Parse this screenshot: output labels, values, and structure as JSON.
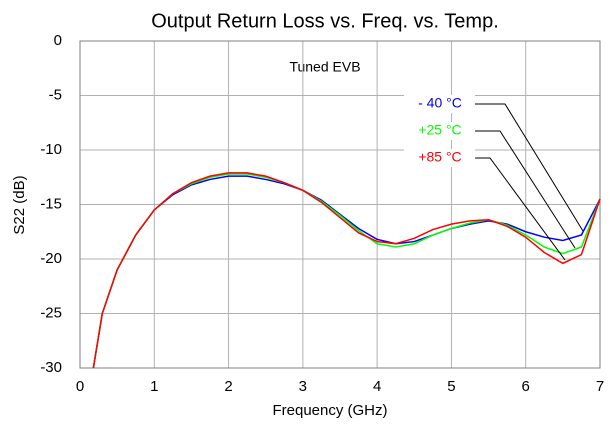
{
  "chart_data": {
    "type": "line",
    "title": "Output Return Loss vs. Freq. vs. Temp.",
    "annotation": "Tuned EVB",
    "xlabel": "Frequency (GHz)",
    "ylabel": "S22 (dB)",
    "x": [
      0.18,
      0.3,
      0.5,
      0.75,
      1.0,
      1.25,
      1.5,
      1.75,
      2.0,
      2.25,
      2.5,
      2.75,
      3.0,
      3.25,
      3.5,
      3.75,
      4.0,
      4.25,
      4.5,
      4.75,
      5.0,
      5.25,
      5.5,
      5.75,
      6.0,
      6.25,
      6.5,
      6.75,
      7.0
    ],
    "series": [
      {
        "name": "- 40 °C",
        "color": "#0000ff",
        "values": [
          -30,
          -25,
          -21,
          -17.8,
          -15.5,
          -14.1,
          -13.2,
          -12.7,
          -12.4,
          -12.4,
          -12.7,
          -13.1,
          -13.7,
          -14.6,
          -15.9,
          -17.2,
          -18.2,
          -18.6,
          -18.4,
          -17.8,
          -17.2,
          -16.8,
          -16.5,
          -16.8,
          -17.5,
          -18.0,
          -18.3,
          -17.8,
          -14.5
        ]
      },
      {
        "name": "+25 °C",
        "color": "#00ff00",
        "values": [
          -30,
          -25,
          -21,
          -17.8,
          -15.5,
          -14.0,
          -13.1,
          -12.5,
          -12.2,
          -12.2,
          -12.5,
          -13.0,
          -13.7,
          -14.7,
          -16.0,
          -17.4,
          -18.6,
          -18.9,
          -18.6,
          -17.8,
          -17.2,
          -16.7,
          -16.4,
          -16.9,
          -17.8,
          -18.9,
          -19.5,
          -18.9,
          -14.5
        ]
      },
      {
        "name": "+85 °C",
        "color": "#ff0000",
        "values": [
          -30,
          -25,
          -21,
          -17.8,
          -15.5,
          -14.0,
          -13.0,
          -12.4,
          -12.1,
          -12.1,
          -12.4,
          -13.0,
          -13.7,
          -14.8,
          -16.2,
          -17.6,
          -18.4,
          -18.6,
          -18.1,
          -17.3,
          -16.8,
          -16.5,
          -16.4,
          -17.0,
          -18.0,
          -19.4,
          -20.4,
          -19.6,
          -14.5
        ]
      }
    ],
    "xlim": [
      0,
      7
    ],
    "xticks": [
      0,
      1,
      2,
      3,
      4,
      5,
      6,
      7
    ],
    "ylim": [
      -30,
      0
    ],
    "yticks": [
      0,
      -5,
      -10,
      -15,
      -20,
      -25,
      -30
    ],
    "grid": true
  }
}
